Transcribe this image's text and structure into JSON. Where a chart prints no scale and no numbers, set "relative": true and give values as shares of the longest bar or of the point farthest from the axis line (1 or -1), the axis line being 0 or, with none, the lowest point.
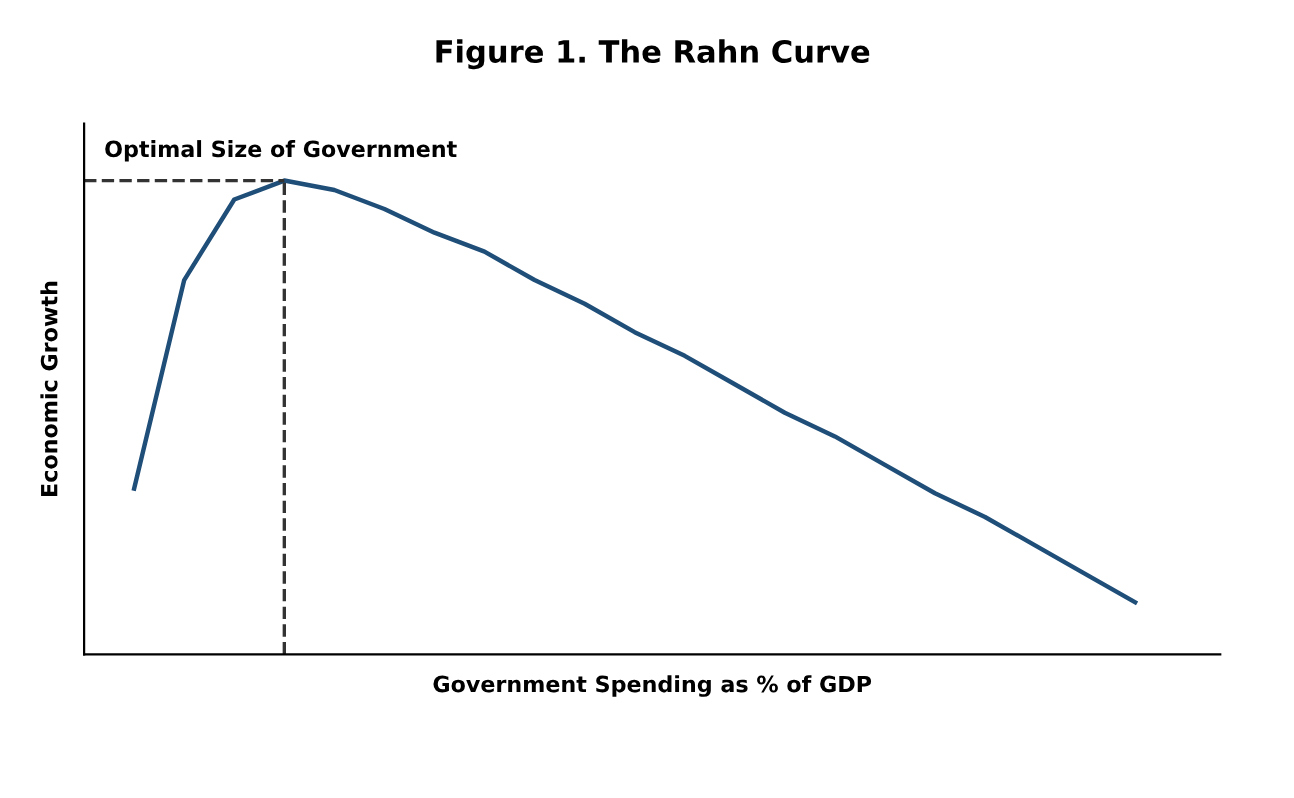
{
  "chart_data": {
    "type": "line",
    "title": "Figure 1. The Rahn Curve",
    "xlabel": "Government Spending as % of GDP",
    "ylabel": "Economic Growth",
    "relative": true,
    "categories": [
      null,
      null,
      null,
      null,
      null,
      null,
      null,
      null,
      null,
      null,
      null,
      null,
      null,
      null,
      null,
      null,
      null,
      null,
      null,
      null,
      null
    ],
    "series": [
      {
        "color": "#1f4e79",
        "values": [
          0.35,
          0.79,
          0.96,
          1.0,
          0.98,
          0.94,
          0.89,
          0.85,
          0.79,
          0.74,
          0.68,
          0.63,
          0.57,
          0.51,
          0.46,
          0.4,
          0.34,
          0.29,
          0.23,
          0.17,
          0.11
        ]
      }
    ],
    "ref_lines": [
      {
        "axis": "y",
        "value": 1.0,
        "color": "#333333",
        "line_style": "dashed"
      }
    ],
    "annotations": [
      "Optimal Size of Government"
    ],
    "grid": false,
    "legend": false,
    "marker": "none",
    "line_style": "solid"
  }
}
